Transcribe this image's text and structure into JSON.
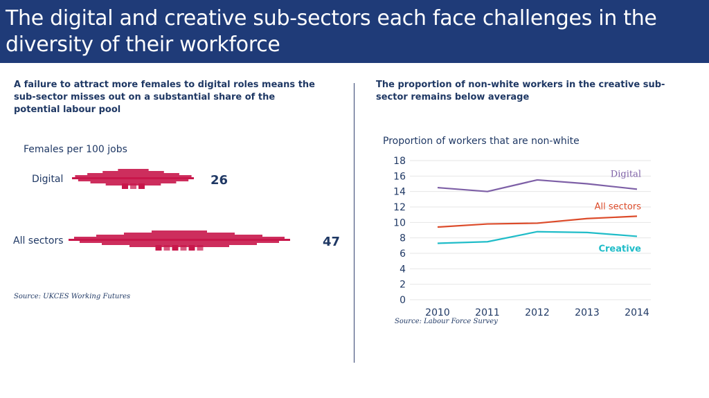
{
  "title": "The digital and creative sub-sectors each face challenges in the diversity of their workforce",
  "left": {
    "heading": "A failure to attract more females to digital roles means the sub-sector misses out on a substantial share of the potential labour pool",
    "measure_label": "Females per 100 jobs",
    "rows": [
      {
        "label": "Digital",
        "value": "26"
      },
      {
        "label": "All sectors",
        "value": "47"
      }
    ],
    "source": "Source: UKCES Working Futures",
    "color": "#c8174b"
  },
  "right": {
    "heading": "The proportion of non-white workers in the creative sub-sector remains below average",
    "source": "Source: Labour Force Survey"
  },
  "chart_data": [
    {
      "type": "bar",
      "title": "Females per 100 jobs",
      "categories": [
        "Digital",
        "All sectors"
      ],
      "values": [
        26,
        47
      ]
    },
    {
      "type": "line",
      "title": "Proportion of workers that are non-white",
      "x": [
        2010,
        2011,
        2012,
        2013,
        2014
      ],
      "ylim": [
        0,
        18
      ],
      "yticks": [
        0,
        2,
        4,
        6,
        8,
        10,
        12,
        14,
        16,
        18
      ],
      "grid": true,
      "series": [
        {
          "name": "Digital",
          "values": [
            14.5,
            14.0,
            15.5,
            15.0,
            14.3
          ],
          "color": "#7d5fa6"
        },
        {
          "name": "All sectors",
          "values": [
            9.4,
            9.8,
            9.9,
            10.5,
            10.8
          ],
          "color": "#dc4b2a"
        },
        {
          "name": "Creative",
          "values": [
            7.3,
            7.5,
            8.8,
            8.7,
            8.2
          ],
          "color": "#1fbcc8"
        }
      ]
    }
  ]
}
